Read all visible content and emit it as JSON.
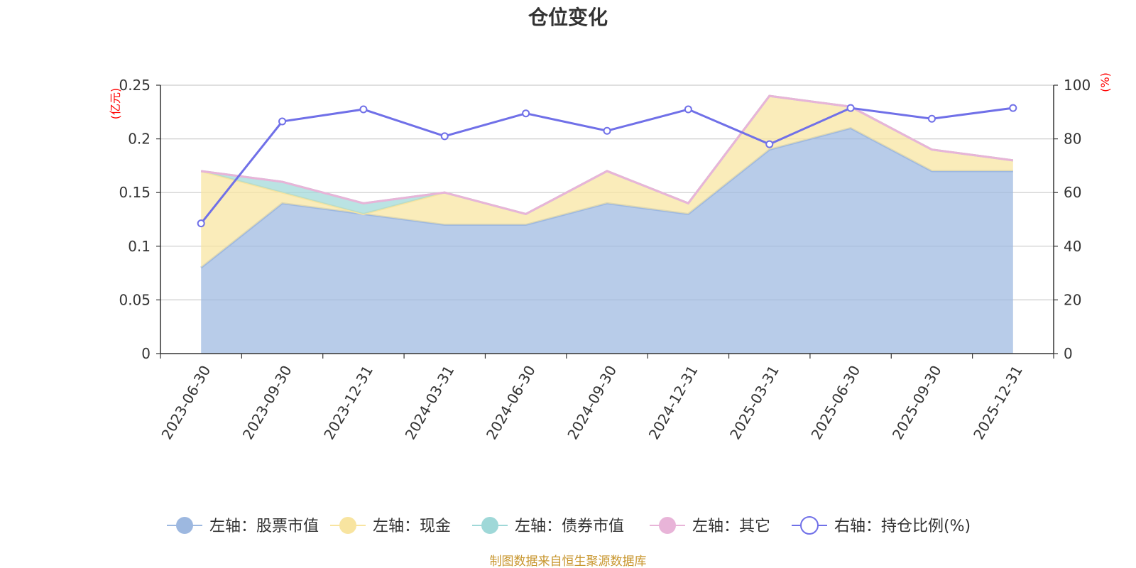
{
  "chart_data": {
    "type": "area",
    "title": "仓位变化",
    "categories": [
      "2023-06-30",
      "2023-09-30",
      "2023-12-31",
      "2024-03-31",
      "2024-06-30",
      "2024-09-30",
      "2024-12-31",
      "2025-03-31",
      "2025-06-30",
      "2025-09-30",
      "2025-12-31"
    ],
    "left_axis": {
      "unit": "(亿元)",
      "ylim": [
        0,
        0.25
      ],
      "ticks": [
        0,
        0.05,
        0.1,
        0.15,
        0.2,
        0.25
      ],
      "tick_labels": [
        "0",
        "0.05",
        "0.1",
        "0.15",
        "0.2",
        "0.25"
      ]
    },
    "right_axis": {
      "unit": "(%)",
      "ylim": [
        0,
        100
      ],
      "ticks": [
        0,
        20,
        40,
        60,
        80,
        100
      ],
      "tick_labels": [
        "0",
        "20",
        "40",
        "60",
        "80",
        "100"
      ]
    },
    "series": [
      {
        "name": "左轴：股票市值",
        "axis": "left",
        "kind": "stacked-area",
        "color": "#9db8e0",
        "values": [
          0.08,
          0.14,
          0.13,
          0.12,
          0.12,
          0.14,
          0.13,
          0.19,
          0.21,
          0.17,
          0.17
        ]
      },
      {
        "name": "左轴：现金",
        "axis": "left",
        "kind": "stacked-area",
        "color": "#f8e4a0",
        "values": [
          0.09,
          0.01,
          0.0,
          0.03,
          0.01,
          0.03,
          0.01,
          0.05,
          0.02,
          0.02,
          0.01
        ]
      },
      {
        "name": "左轴：债券市值",
        "axis": "left",
        "kind": "stacked-area",
        "color": "#9fd8d8",
        "values": [
          0.0,
          0.01,
          0.01,
          0.0,
          0.0,
          0.0,
          0.0,
          0.0,
          0.0,
          0.0,
          0.0
        ]
      },
      {
        "name": "左轴：其它",
        "axis": "left",
        "kind": "stacked-area",
        "color": "#e8b4d8",
        "values": [
          0.0,
          0.0,
          0.0,
          0.0,
          0.0,
          0.0,
          0.0,
          0.0,
          0.0,
          0.0,
          0.0
        ]
      },
      {
        "name": "右轴：持仓比例(%)",
        "axis": "right",
        "kind": "line",
        "color": "#7070e8",
        "values": [
          48.5,
          86.5,
          91.0,
          81.0,
          89.5,
          83.0,
          91.0,
          78.0,
          91.5,
          87.5,
          91.5
        ]
      }
    ],
    "grid": true,
    "legend_position": "bottom"
  },
  "source_text": "制图数据来自恒生聚源数据库"
}
